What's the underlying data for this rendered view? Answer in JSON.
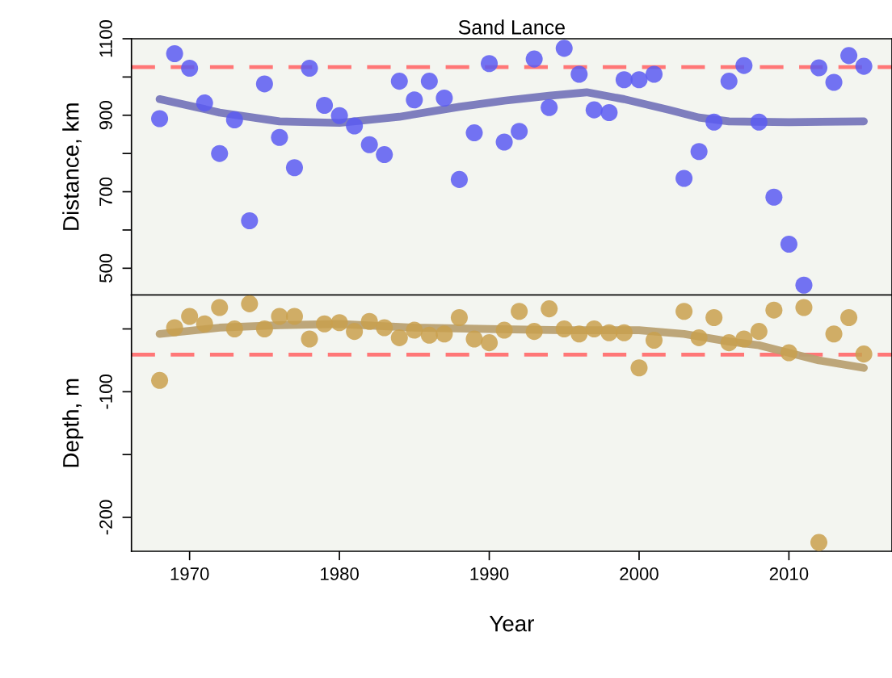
{
  "chart_data": [
    {
      "type": "scatter",
      "title": "Sand Lance",
      "ylabel": "Distance, km",
      "xlim": [
        1966.12,
        2016.88
      ],
      "ylim": [
        430,
        1100
      ],
      "tick_labels": "y",
      "grid": false,
      "yticks": [
        500,
        {
          "value": 600,
          "label": null
        },
        700,
        {
          "value": 800,
          "label": null
        },
        900,
        {
          "value": 1000,
          "label": null
        },
        1100
      ],
      "series": [
        {
          "marker": "circle",
          "color": "#5a5af2",
          "x": [
            1968,
            1969,
            1970,
            1971,
            1972,
            1973,
            1974,
            1975,
            1976,
            1977,
            1978,
            1979,
            1980,
            1981,
            1982,
            1983,
            1984,
            1985,
            1986,
            1987,
            1988,
            1989,
            1990,
            1991,
            1992,
            1993,
            1994,
            1995,
            1996,
            1997,
            1998,
            1999,
            2000,
            2001,
            2003,
            2004,
            2005,
            2006,
            2007,
            2008,
            2009,
            2010,
            2011,
            2012,
            2013,
            2014,
            2015
          ],
          "values": [
            891,
            1061,
            1023,
            932,
            800,
            888,
            624,
            982,
            842,
            763,
            1023,
            926,
            899,
            872,
            823,
            797,
            989,
            940,
            989,
            945,
            732,
            854,
            1035,
            830,
            858,
            1047,
            920,
            1075,
            1007,
            914,
            907,
            993,
            993,
            1007,
            735,
            805,
            882,
            989,
            1030,
            882,
            686,
            563,
            456,
            1024,
            986,
            1056,
            1028
          ]
        },
        {
          "type": "line",
          "color": "#7777bb",
          "x": [
            1968,
            1970,
            1972,
            1976,
            1980,
            1984,
            1988,
            1991,
            1994,
            1996.5,
            1999,
            2002,
            2004,
            2006,
            2010,
            2015
          ],
          "values": [
            942,
            925,
            907,
            884,
            880,
            896,
            922,
            938,
            951,
            960,
            942,
            914,
            894,
            884,
            882,
            884
          ]
        }
      ],
      "ref_lines": [
        {
          "axis": "y",
          "value": 1026,
          "color": "#ff7777",
          "line_style": "dashed"
        }
      ]
    },
    {
      "type": "scatter",
      "ylabel": "Depth, m",
      "xlabel": "Year",
      "xlim": [
        1966.12,
        2016.88
      ],
      "ylim": [
        -227,
        -23
      ],
      "grid": false,
      "xticks": [
        1970,
        1980,
        1990,
        2000,
        2010
      ],
      "yticks": [
        {
          "value": -50,
          "label": null
        },
        -100,
        {
          "value": -150,
          "label": null
        },
        -200
      ],
      "series": [
        {
          "marker": "circle",
          "color": "#c9a04e",
          "x": [
            1968,
            1969,
            1970,
            1971,
            1972,
            1973,
            1974,
            1975,
            1976,
            1977,
            1978,
            1979,
            1980,
            1981,
            1982,
            1983,
            1984,
            1985,
            1986,
            1987,
            1988,
            1989,
            1990,
            1991,
            1992,
            1993,
            1994,
            1995,
            1996,
            1997,
            1998,
            1999,
            2000,
            2001,
            2003,
            2004,
            2005,
            2006,
            2007,
            2008,
            2009,
            2010,
            2011,
            2012,
            2013,
            2014,
            2015
          ],
          "values": [
            -91,
            -49,
            -40,
            -46,
            -33,
            -50,
            -30,
            -50,
            -40,
            -40,
            -58,
            -46,
            -45,
            -52,
            -44,
            -49,
            -57,
            -51,
            -55,
            -54,
            -41,
            -58,
            -61,
            -51,
            -36,
            -52,
            -34,
            -50,
            -54,
            -50,
            -53,
            -53,
            -81,
            -59,
            -36,
            -57,
            -41,
            -61,
            -58,
            -52,
            -35,
            -69,
            -33,
            -220,
            -54,
            -41,
            -70
          ]
        },
        {
          "type": "line",
          "color": "#b9a172",
          "x": [
            1968,
            1972,
            1976,
            1980,
            1985,
            1990,
            1995,
            2000,
            2003,
            2006,
            2008,
            2010,
            2012,
            2015
          ],
          "values": [
            -54,
            -49,
            -47,
            -46,
            -49,
            -50,
            -51,
            -51,
            -54,
            -60,
            -63,
            -69,
            -75,
            -81
          ]
        }
      ],
      "ref_lines": [
        {
          "axis": "y",
          "value": -70.5,
          "color": "#ff7777",
          "line_style": "dashed"
        }
      ]
    }
  ]
}
